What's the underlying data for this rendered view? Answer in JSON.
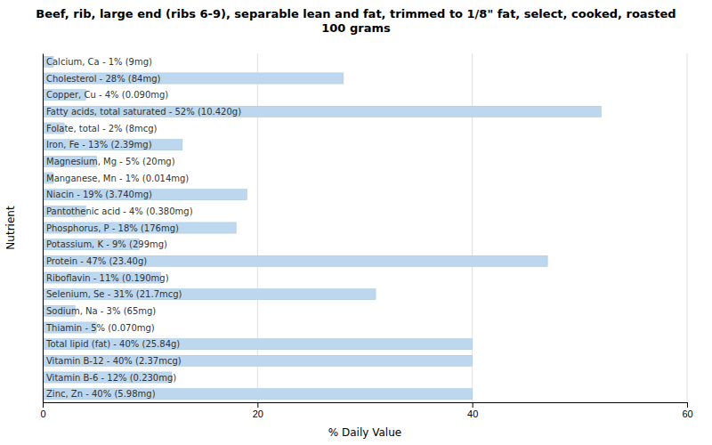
{
  "chart_data": {
    "type": "bar",
    "title": "Beef, rib, large end (ribs 6-9), separable lean and fat, trimmed to 1/8\" fat, select, cooked, roasted\n100 grams",
    "xlabel": "% Daily Value",
    "ylabel": "Nutrient",
    "orientation": "horizontal",
    "categories": [
      "Calcium, Ca - 1% (9mg)",
      "Cholesterol - 28% (84mg)",
      "Copper, Cu - 4% (0.090mg)",
      "Fatty acids, total saturated - 52% (10.420g)",
      "Folate, total - 2% (8mcg)",
      "Iron, Fe - 13% (2.39mg)",
      "Magnesium, Mg - 5% (20mg)",
      "Manganese, Mn - 1% (0.014mg)",
      "Niacin - 19% (3.740mg)",
      "Pantothenic acid - 4% (0.380mg)",
      "Phosphorus, P - 18% (176mg)",
      "Potassium, K - 9% (299mg)",
      "Protein - 47% (23.40g)",
      "Riboflavin - 11% (0.190mg)",
      "Selenium, Se - 31% (21.7mcg)",
      "Sodium, Na - 3% (65mg)",
      "Thiamin - 5% (0.070mg)",
      "Total lipid (fat) - 40% (25.84g)",
      "Vitamin B-12 - 40% (2.37mcg)",
      "Vitamin B-6 - 12% (0.230mg)",
      "Zinc, Zn - 40% (5.98mg)"
    ],
    "values": [
      1,
      28,
      4,
      52,
      2,
      13,
      5,
      1,
      19,
      4,
      18,
      9,
      47,
      11,
      31,
      3,
      5,
      40,
      40,
      12,
      40
    ],
    "color": "#bdd7ee",
    "xlim": [
      0,
      60
    ],
    "xticks": [
      0,
      20,
      40,
      60
    ],
    "grid": true
  }
}
